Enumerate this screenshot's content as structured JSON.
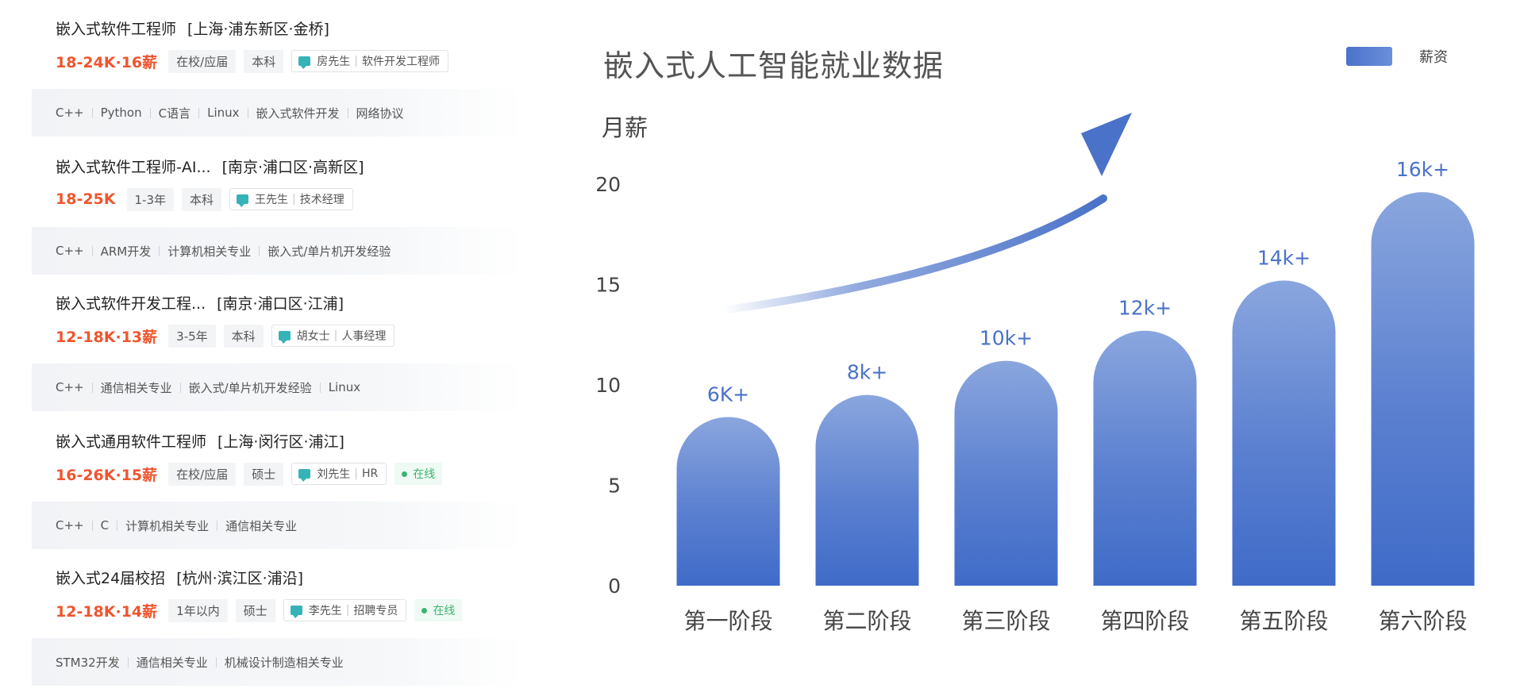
{
  "jobs": [
    {
      "title": "嵌入式软件工程师",
      "location": "[上海·浦东新区·金桥]",
      "salary": "18-24K·16薪",
      "tags": [
        "在校/应届",
        "本科"
      ],
      "recruiter_name": "房先生",
      "recruiter_role": "软件开发工程师",
      "online": "",
      "skills": [
        "C++",
        "Python",
        "C语言",
        "Linux",
        "嵌入式软件开发",
        "网络协议"
      ]
    },
    {
      "title": "嵌入式软件工程师-AI...",
      "location": "[南京·浦口区·高新区]",
      "salary": "18-25K",
      "tags": [
        "1-3年",
        "本科"
      ],
      "recruiter_name": "王先生",
      "recruiter_role": "技术经理",
      "online": "",
      "skills": [
        "C++",
        "ARM开发",
        "计算机相关专业",
        "嵌入式/单片机开发经验"
      ]
    },
    {
      "title": "嵌入式软件开发工程...",
      "location": "[南京·浦口区·江浦]",
      "salary": "12-18K·13薪",
      "tags": [
        "3-5年",
        "本科"
      ],
      "recruiter_name": "胡女士",
      "recruiter_role": "人事经理",
      "online": "",
      "skills": [
        "C++",
        "通信相关专业",
        "嵌入式/单片机开发经验",
        "Linux"
      ]
    },
    {
      "title": "嵌入式通用软件工程师",
      "location": "[上海·闵行区·浦江]",
      "salary": "16-26K·15薪",
      "tags": [
        "在校/应届",
        "硕士"
      ],
      "recruiter_name": "刘先生",
      "recruiter_role": "HR",
      "online": "在线",
      "skills": [
        "C++",
        "C",
        "计算机相关专业",
        "通信相关专业"
      ]
    },
    {
      "title": "嵌入式24届校招",
      "location": "[杭州·滨江区·浦沿]",
      "salary": "12-18K·14薪",
      "tags": [
        "1年以内",
        "硕士"
      ],
      "recruiter_name": "李先生",
      "recruiter_role": "招聘专员",
      "online": "在线",
      "skills": [
        "STM32开发",
        "通信相关专业",
        "机械设计制造相关专业"
      ]
    }
  ],
  "chart_data": {
    "type": "bar",
    "title": "嵌入式人工智能就业数据",
    "ylabel": "月薪",
    "xlabel": "",
    "ylim": [
      0,
      20
    ],
    "yticks": [
      0,
      5,
      10,
      15,
      20
    ],
    "categories": [
      "第一阶段",
      "第二阶段",
      "第三阶段",
      "第四阶段",
      "第五阶段",
      "第六阶段"
    ],
    "series": [
      {
        "name": "薪资",
        "values": [
          8.4,
          9.5,
          11.2,
          12.7,
          15.2,
          19.6
        ],
        "data_labels": [
          "6K+",
          "8k+",
          "10k+",
          "12k+",
          "14k+",
          "16k+"
        ]
      }
    ],
    "legend_position": "top-right",
    "grid": false,
    "colors": {
      "bar": "#4a72c9",
      "bar_light": "#8aa6de",
      "arrow": "#4a72c9",
      "label": "#4a72c9"
    }
  }
}
